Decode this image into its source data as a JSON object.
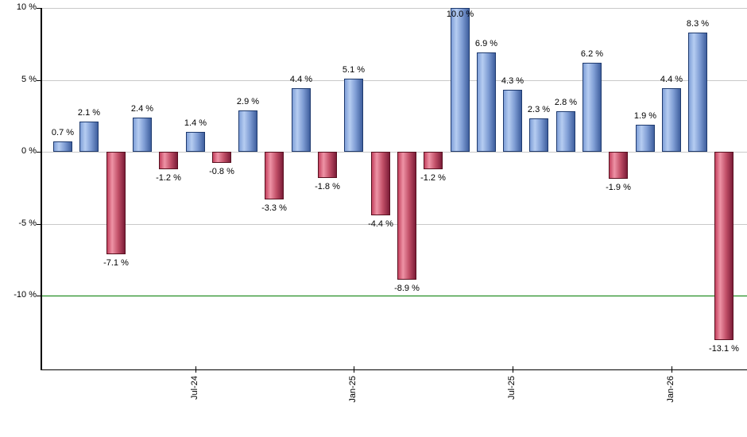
{
  "chart_data": {
    "type": "bar",
    "title": "",
    "xlabel": "",
    "ylabel": "",
    "values": [
      0.7,
      2.1,
      -7.1,
      2.4,
      -1.2,
      1.4,
      -0.8,
      2.9,
      -3.3,
      4.4,
      -1.8,
      5.1,
      -4.4,
      -8.9,
      -1.2,
      10.0,
      6.9,
      4.3,
      2.3,
      2.8,
      6.2,
      -1.9,
      1.9,
      4.4,
      8.3,
      -13.1
    ],
    "bar_value_labels": [
      "0.7 %",
      "2.1 %",
      "-7.1 %",
      "2.4 %",
      "-1.2 %",
      "1.4 %",
      "-0.8 %",
      "2.9 %",
      "-3.3 %",
      "4.4 %",
      "-1.8 %",
      "5.1 %",
      "-4.4 %",
      "-8.9 %",
      "-1.2 %",
      "10.0 %",
      "6.9 %",
      "4.3 %",
      "2.3 %",
      "2.8 %",
      "6.2 %",
      "-1.9 %",
      "1.9 %",
      "4.4 %",
      "8.3 %",
      "-13.1 %"
    ],
    "y_ticks": [
      {
        "label": "10 %",
        "value": 10
      },
      {
        "label": "5 %",
        "value": 5
      },
      {
        "label": "0 %",
        "value": 0
      },
      {
        "label": "-5 %",
        "value": -5
      },
      {
        "label": "-10 %",
        "value": -10
      }
    ],
    "x_ticks": [
      {
        "label": "Jul-24",
        "bar_index": 5
      },
      {
        "label": "Jan-25",
        "bar_index": 11
      },
      {
        "label": "Jul-25",
        "bar_index": 17
      },
      {
        "label": "Jan-26",
        "bar_index": 23
      }
    ],
    "ylim": [
      -15.2,
      10
    ],
    "grid": "horizontal",
    "legend_position": "none",
    "reference_line": {
      "value": -10,
      "color": "#007b00"
    },
    "colors": {
      "positive_bar_gradient": [
        "#7f9fd8",
        "#b6cdf1",
        "#7e9cd3",
        "#3f5f9e"
      ],
      "positive_bar_border": "#1e3a6e",
      "negative_bar_gradient": [
        "#c4415e",
        "#ee93a6",
        "#c25068",
        "#7c1c38"
      ],
      "negative_bar_border": "#58101f",
      "gridline": "#c9c9c9",
      "axis": "#000000",
      "label_text": "#000000",
      "background": "#ffffff"
    }
  }
}
